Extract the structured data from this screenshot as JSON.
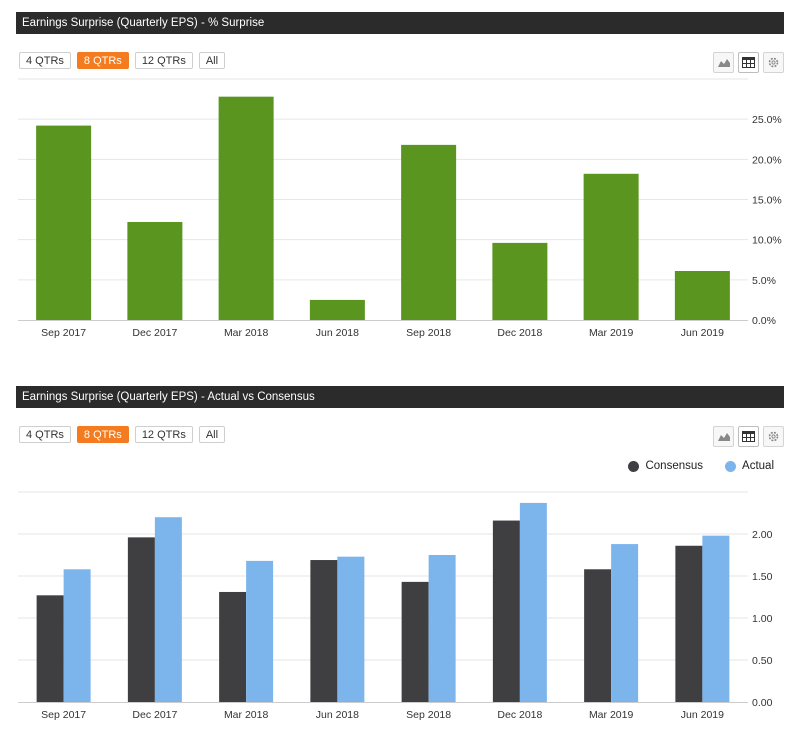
{
  "panels": {
    "surprise": {
      "title": "Earnings Surprise (Quarterly EPS) - % Surprise",
      "range_buttons": [
        "4 QTRs",
        "8 QTRs",
        "12 QTRs",
        "All"
      ],
      "active_range": "8 QTRs"
    },
    "actual_vs_consensus": {
      "title": "Earnings Surprise (Quarterly EPS) - Actual vs Consensus",
      "range_buttons": [
        "4 QTRs",
        "8 QTRs",
        "12 QTRs",
        "All"
      ],
      "active_range": "8 QTRs",
      "legend": [
        "Consensus",
        "Actual"
      ]
    }
  },
  "tools": [
    "area-chart-icon",
    "table-icon",
    "gear-icon"
  ],
  "colors": {
    "green": "#5a951f",
    "consensus": "#3f3e41",
    "actual": "#7cb5ec",
    "accent": "#f47b1f"
  },
  "chart_data": [
    {
      "type": "bar",
      "title": "Earnings Surprise (Quarterly EPS) - % Surprise",
      "categories": [
        "Sep 2017",
        "Dec 2017",
        "Mar 2018",
        "Jun 2018",
        "Sep 2018",
        "Dec 2018",
        "Mar 2019",
        "Jun 2019"
      ],
      "values": [
        24.2,
        12.2,
        27.8,
        2.5,
        21.8,
        9.6,
        18.2,
        6.1
      ],
      "unit": "%",
      "ylim": [
        0,
        30
      ],
      "yticks": [
        "0.0%",
        "5.0%",
        "10.0%",
        "15.0%",
        "20.0%",
        "25.0%"
      ],
      "grid": true
    },
    {
      "type": "bar",
      "title": "Earnings Surprise (Quarterly EPS) - Actual vs Consensus",
      "categories": [
        "Sep 2017",
        "Dec 2017",
        "Mar 2018",
        "Jun 2018",
        "Sep 2018",
        "Dec 2018",
        "Mar 2019",
        "Jun 2019"
      ],
      "series": [
        {
          "name": "Consensus",
          "values": [
            1.27,
            1.96,
            1.31,
            1.69,
            1.43,
            2.16,
            1.58,
            1.86
          ]
        },
        {
          "name": "Actual",
          "values": [
            1.58,
            2.2,
            1.68,
            1.73,
            1.75,
            2.37,
            1.88,
            1.98
          ]
        }
      ],
      "ylim": [
        0,
        2.5
      ],
      "yticks": [
        "0.00",
        "0.50",
        "1.00",
        "1.50",
        "2.00"
      ],
      "legend_position": "top-right",
      "grid": true
    }
  ]
}
